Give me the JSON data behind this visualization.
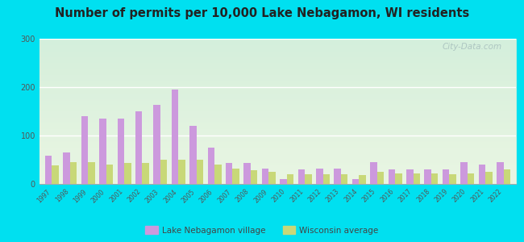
{
  "title": "Number of permits per 10,000 Lake Nebagamon, WI residents",
  "years": [
    1997,
    1998,
    1999,
    2000,
    2001,
    2002,
    2003,
    2004,
    2005,
    2006,
    2007,
    2008,
    2009,
    2010,
    2011,
    2012,
    2013,
    2014,
    2015,
    2016,
    2017,
    2018,
    2019,
    2020,
    2021,
    2022
  ],
  "lake_nebagamon": [
    58,
    65,
    140,
    135,
    135,
    150,
    163,
    195,
    120,
    75,
    43,
    43,
    32,
    10,
    30,
    32,
    32,
    10,
    45,
    30,
    30,
    30,
    30,
    45,
    40,
    45
  ],
  "wisconsin_avg": [
    38,
    45,
    45,
    40,
    43,
    43,
    50,
    50,
    50,
    40,
    32,
    28,
    25,
    20,
    20,
    20,
    20,
    18,
    25,
    22,
    22,
    22,
    20,
    22,
    25,
    30
  ],
  "lake_color": "#cc99dd",
  "wi_color": "#c8d878",
  "outer_bg": "#00e0f0",
  "ylim": [
    0,
    300
  ],
  "yticks": [
    0,
    100,
    200,
    300
  ],
  "legend_lake": "Lake Nebagamon village",
  "legend_wi": "Wisconsin average",
  "watermark": "City-Data.com"
}
